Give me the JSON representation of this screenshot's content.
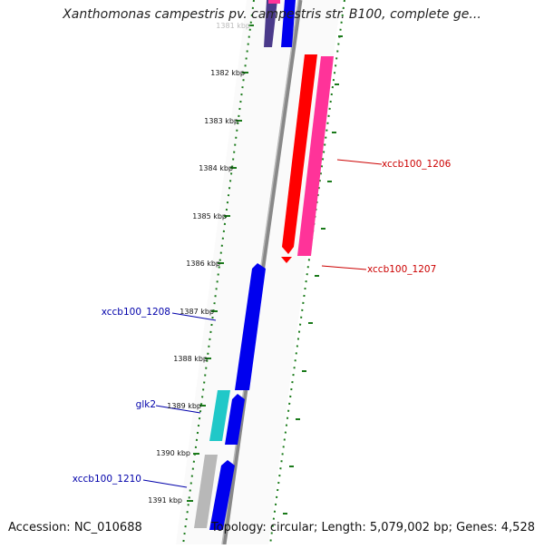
{
  "title": "Xanthomonas campestris pv. campestris str. B100, complete ge...",
  "footer": {
    "accession": "Accession: NC_010688",
    "summary": "Topology: circular; Length: 5,079,002 bp; Genes: 4,528"
  },
  "ruler_labels": [
    "1381 kbp",
    "1382 kbp",
    "1383 kbp",
    "1384 kbp",
    "1385 kbp",
    "1386 kbp",
    "1387 kbp",
    "1388 kbp",
    "1389 kbp",
    "1390 kbp",
    "1391 kbp"
  ],
  "gene_labels": [
    "xccb100_1206",
    "xccb100_1207",
    "xccb100_1208",
    "glk2",
    "xccb100_1210"
  ],
  "colors": {
    "forward": "#0000ee",
    "forward_top": "#1a10d0",
    "reverse": "#ff0000",
    "pink": "#ff3399",
    "cyan": "#20c8c8",
    "gray": "#b8b8b8",
    "purple": "#4a3a8a",
    "tick": "#1a7a1a",
    "backbone": "#888888",
    "label_red": "#cc0000",
    "label_blue": "#0000aa"
  }
}
